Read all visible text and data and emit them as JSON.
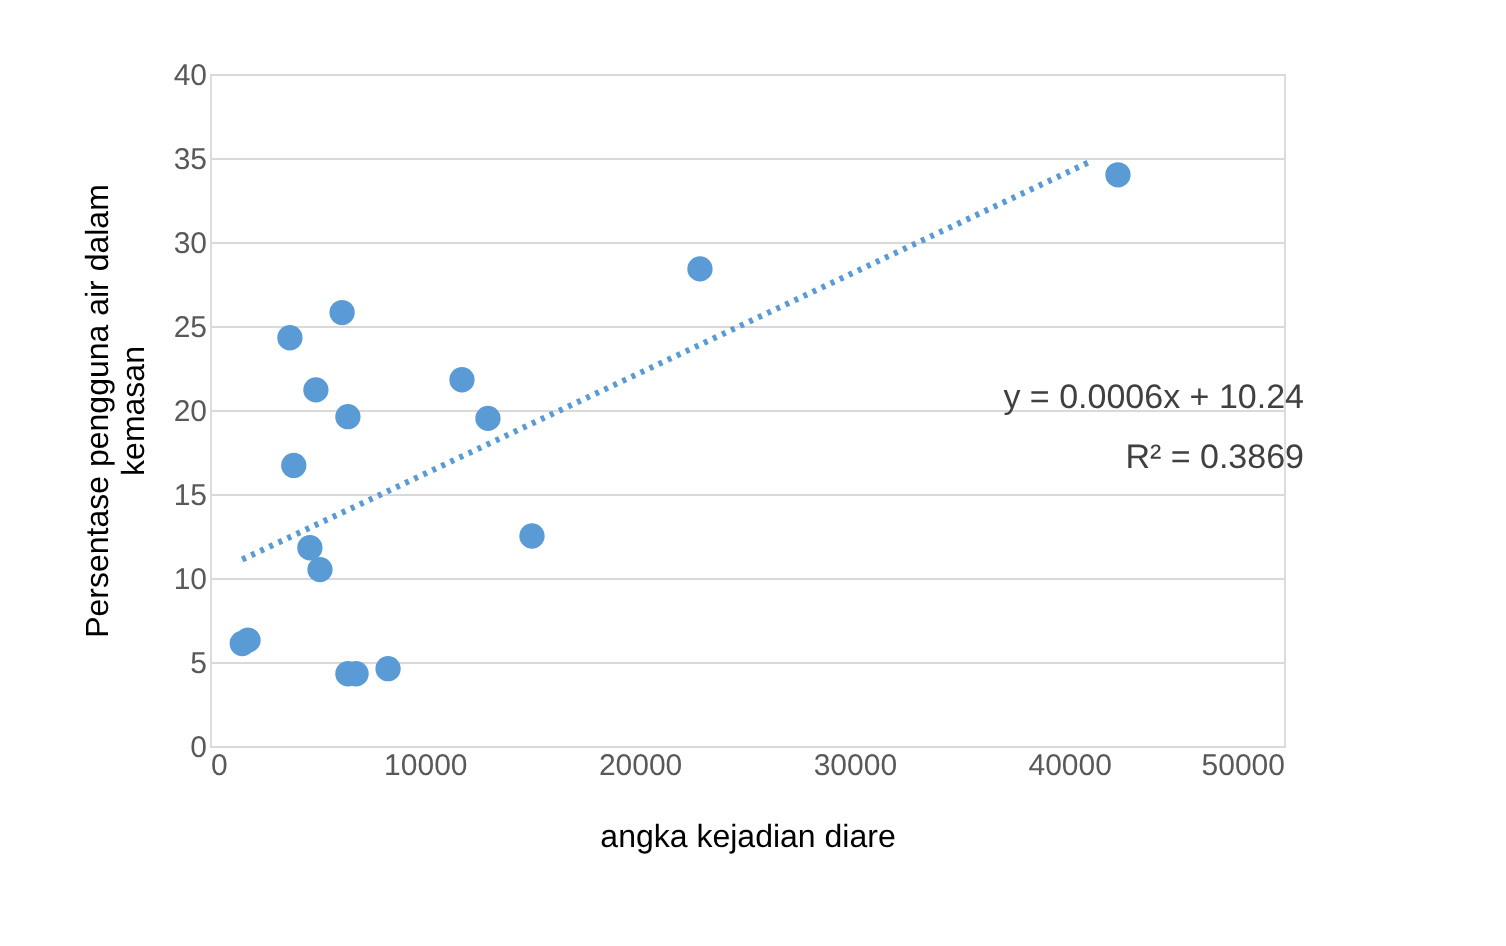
{
  "chart_data": {
    "type": "scatter",
    "xlabel": "angka kejadian diare",
    "ylabel": "Persentase pengguna air  dalam\nkemasan",
    "series": [
      {
        "color": "#5b9bd5",
        "marker": "circle",
        "x": [
          1500,
          1770,
          3900,
          3720,
          4930,
          4650,
          5120,
          6150,
          6420,
          6420,
          6800,
          8290,
          11730,
          12940,
          14990,
          22810,
          42270
        ],
        "values": [
          6.1,
          6.3,
          16.7,
          24.3,
          21.2,
          11.8,
          10.5,
          25.8,
          19.6,
          4.3,
          4.3,
          4.6,
          21.8,
          19.5,
          12.5,
          28.4,
          34.0
        ]
      },
      {
        "type": "line",
        "color": "#5b9bd5",
        "line_style": "dotted",
        "marker": "none",
        "x": [
          1500,
          41000
        ],
        "values": [
          11.1,
          34.8
        ]
      }
    ],
    "annotations": [
      "y = 0.0006x + 10.24",
      "R² = 0.3869"
    ],
    "xlim": [
      0,
      50000
    ],
    "ylim": [
      0,
      40
    ],
    "xticks": [
      0,
      10000,
      20000,
      30000,
      40000,
      50000
    ],
    "yticks": [
      0,
      5,
      10,
      15,
      20,
      25,
      30,
      35,
      40
    ],
    "grid": "y"
  }
}
